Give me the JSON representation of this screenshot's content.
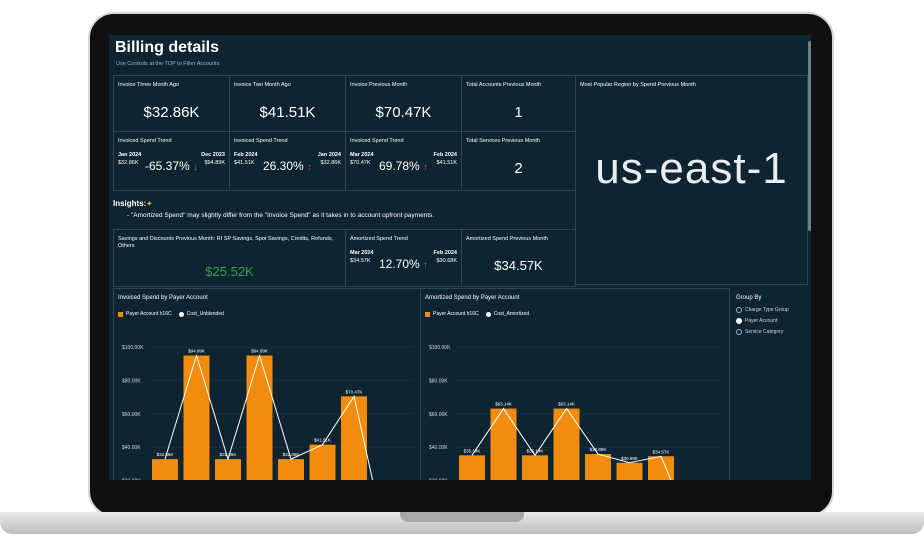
{
  "header": {
    "title": "Billing details",
    "subtitle": "Use Controls at the TOP to Filter Accounts"
  },
  "kpis": {
    "three_month_label": "Invoice Three Month Ago",
    "three_month_value": "$32.86K",
    "two_month_label": "Invoice Two Month Ago",
    "two_month_value": "$41.51K",
    "prev_month_label": "Invoice Previous Month",
    "prev_month_value": "$70.47K",
    "accounts_label": "Total Accounts Previous Month",
    "accounts_value": "1",
    "region_label": "Most Popular Region by Spend Previous Month",
    "region_value": "us-east-1",
    "services_label": "Total Services Previous Month",
    "services_value": "2",
    "savings_label": "Savings and Discounts Previous Month: RI SP Savings, Spot Savings, Credits, Refunds, Others",
    "savings_value": "$25.52K",
    "amortized_prev_label": "Amortized Spend Previous Month",
    "amortized_prev_value": "$34.57K"
  },
  "trends": [
    {
      "label": "Invoiced Spend Trend",
      "left_date": "Jan 2024",
      "left_val": "$32.86K",
      "pct": "-65.37%",
      "dir": "down",
      "right_date": "Dec 2023",
      "right_val": "$94.89K"
    },
    {
      "label": "Invoiced Spend Trend",
      "left_date": "Feb 2024",
      "left_val": "$41.51K",
      "pct": "26.30%",
      "dir": "up",
      "right_date": "Jan 2024",
      "right_val": "$32.86K"
    },
    {
      "label": "Invoiced Spend Trend",
      "left_date": "Mar 2024",
      "left_val": "$70.47K",
      "pct": "69.78%",
      "dir": "up",
      "right_date": "Feb 2024",
      "right_val": "$41.51K"
    },
    {
      "label": "Amortized Spend Trend",
      "left_date": "Mar 2024",
      "left_val": "$34.57K",
      "pct": "12.70%",
      "dir": "up-green",
      "right_date": "Feb 2024",
      "right_val": "$30.68K"
    }
  ],
  "insights": {
    "heading": "Insights:",
    "text": "- \"Amortized Spend\" may slightly differ from the \"Invoice Spend\" as it takes in to account upfront payments."
  },
  "group_by": {
    "heading": "Group By",
    "options": [
      "Charge Type Group",
      "Payer Account",
      "Service Category"
    ],
    "selected": "Payer Account"
  },
  "colors": {
    "bar": "#f28c0f",
    "line": "#ffffff",
    "background": "#0e2430",
    "accent_green": "#2ea44f",
    "accent_red": "#e4572e"
  },
  "chart_data": [
    {
      "type": "bar",
      "title": "Invoiced Spend by Payer Account",
      "legend": [
        "Payer Account h16C",
        "Cost_Unblended"
      ],
      "y_ticks": [
        "$100.00K",
        "$80.00K",
        "$60.00K",
        "$40.00K",
        "$20.00K"
      ],
      "ylim": [
        0,
        100
      ],
      "values": [
        32.86,
        94.89,
        32.86,
        94.89,
        32.86,
        41.51,
        70.47
      ],
      "labels": [
        "$32.86K",
        "$94.89K",
        "$32.86K",
        "$94.89K",
        "$32.86K",
        "$41.51K",
        "$70.47K"
      ]
    },
    {
      "type": "bar",
      "title": "Amortized Spend by Payer Account",
      "legend": [
        "Payer Account h16C",
        "Cost_Amortized"
      ],
      "y_ticks": [
        "$100.00K",
        "$80.00K",
        "$60.00K",
        "$40.00K",
        "$20.00K"
      ],
      "ylim": [
        0,
        100
      ],
      "values": [
        35.14,
        63.14,
        35.14,
        63.14,
        35.89,
        30.68,
        34.57
      ],
      "labels": [
        "$35.14K",
        "$63.14K",
        "$35.14K",
        "$63.14K",
        "$35.89K",
        "$30.68K",
        "$34.57K"
      ]
    }
  ]
}
